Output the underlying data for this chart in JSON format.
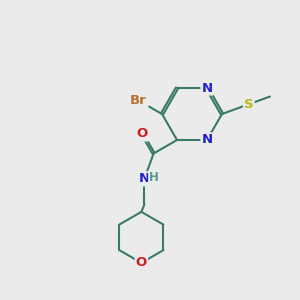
{
  "bg_color": "#ebebeb",
  "bond_color": "#3a7a6a",
  "atom_colors": {
    "Br": "#b87030",
    "N": "#2020cc",
    "O": "#cc2020",
    "S": "#b8b820",
    "H": "#5a9a8a"
  },
  "font_size": 9.5,
  "bond_width": 1.5
}
